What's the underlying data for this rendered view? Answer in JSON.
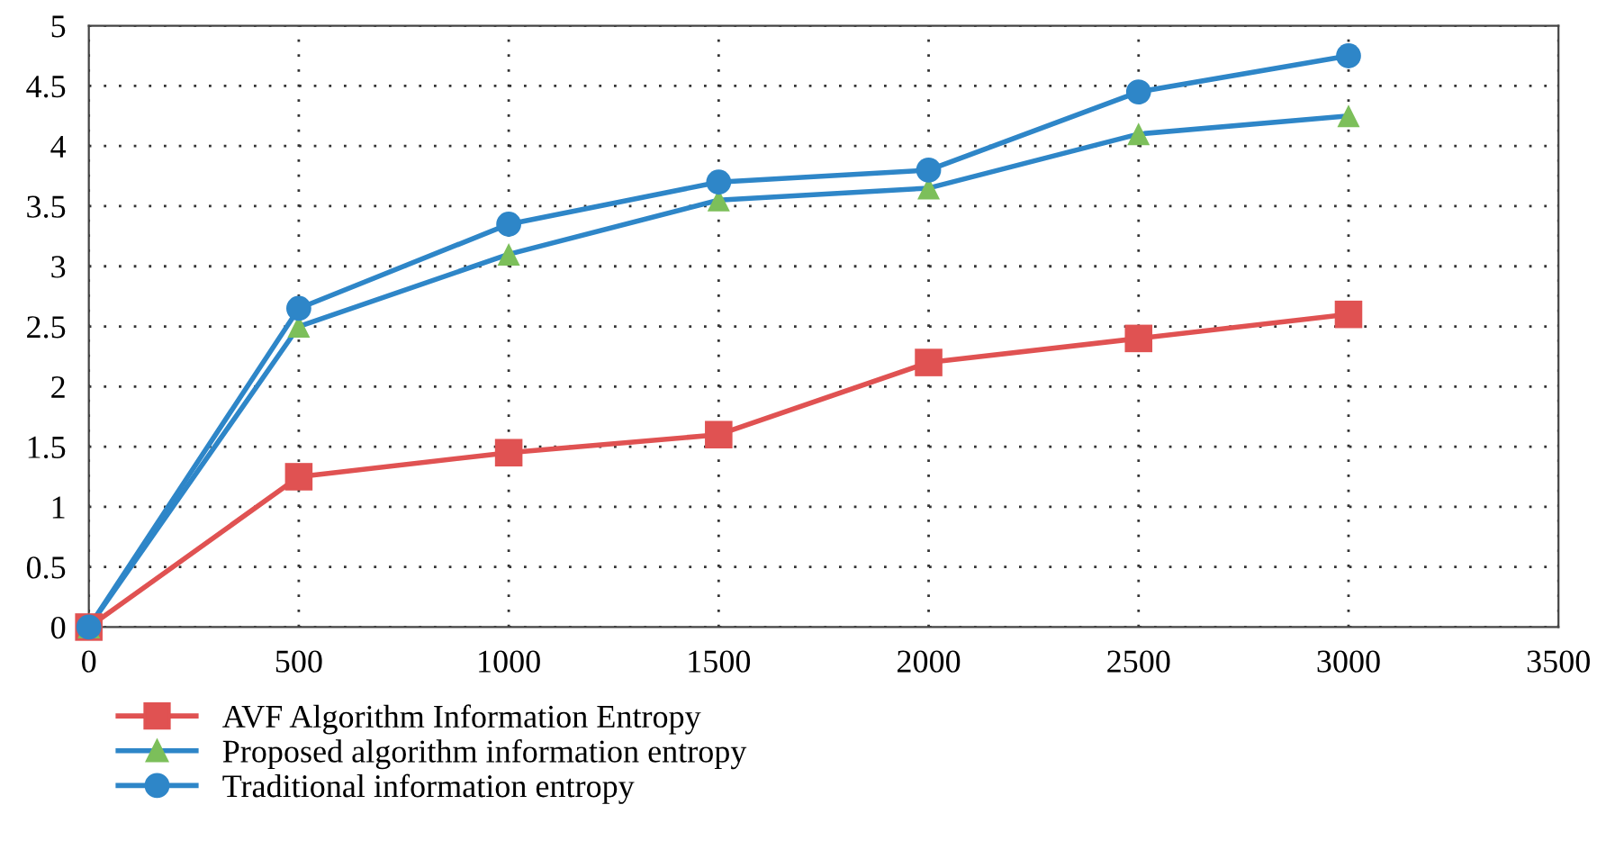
{
  "chart_data": {
    "type": "line",
    "x": [
      0,
      500,
      1000,
      1500,
      2000,
      2500,
      3000
    ],
    "series": [
      {
        "name": "AVF Algorithm Information Entropy",
        "color": "#e05252",
        "marker": "square",
        "values": [
          0,
          1.25,
          1.45,
          1.6,
          2.2,
          2.4,
          2.6
        ]
      },
      {
        "name": "Proposed algorithm information entropy",
        "color": "#2e86c8",
        "colors": [
          "#7cbf5a",
          "#7cbf5a",
          "#7cbf5a",
          "#7cbf5a",
          "#7cbf5a",
          "#7cbf5a",
          "#7cbf5a"
        ],
        "marker": "triangle",
        "values": [
          0,
          2.5,
          3.1,
          3.55,
          3.65,
          4.1,
          4.25
        ]
      },
      {
        "name": "Traditional information entropy",
        "color": "#2e86c8",
        "marker": "circle",
        "values": [
          0,
          2.65,
          3.35,
          3.7,
          3.8,
          4.45,
          4.75
        ]
      }
    ],
    "xlim": [
      0,
      3500
    ],
    "xticks": [
      0,
      500,
      1000,
      1500,
      2000,
      2500,
      3000,
      3500
    ],
    "ylim": [
      0,
      5
    ],
    "yticks": [
      0,
      0.5,
      1,
      1.5,
      2,
      2.5,
      3,
      3.5,
      4,
      4.5,
      5
    ],
    "grid": true,
    "line_style": "solid",
    "legend": "bottom left"
  }
}
